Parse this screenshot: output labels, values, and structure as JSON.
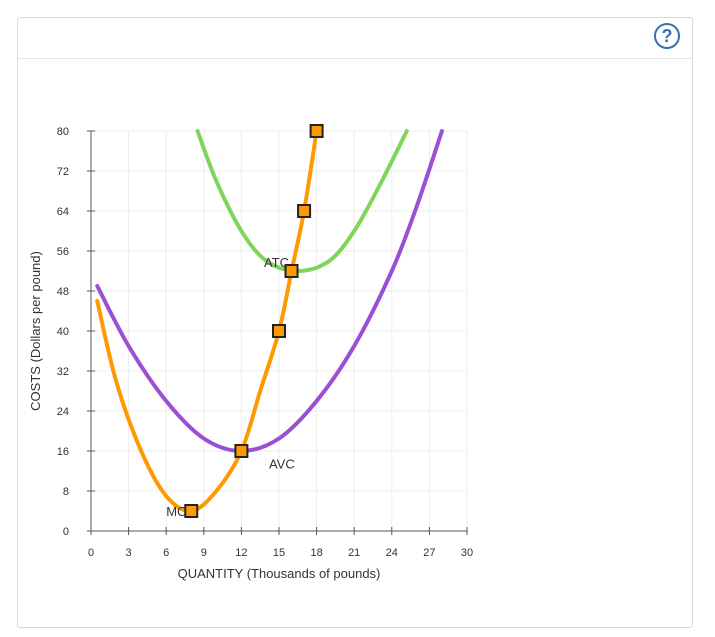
{
  "help_button": {
    "label": "?"
  },
  "chart_data": {
    "type": "line",
    "xlabel": "QUANTITY (Thousands of pounds)",
    "ylabel": "COSTS (Dollars per pound)",
    "xlim": [
      0,
      30
    ],
    "ylim": [
      0,
      80
    ],
    "xticks": [
      0,
      3,
      6,
      9,
      12,
      15,
      18,
      21,
      24,
      27,
      30
    ],
    "yticks": [
      0,
      8,
      16,
      24,
      32,
      40,
      48,
      56,
      64,
      72,
      80
    ],
    "grid": true,
    "series": [
      {
        "name": "MC",
        "color": "#ff9900",
        "points": [
          [
            0.5,
            46
          ],
          [
            2,
            30
          ],
          [
            4,
            16
          ],
          [
            6,
            7
          ],
          [
            8,
            4
          ],
          [
            10,
            8
          ],
          [
            12,
            16
          ],
          [
            13.5,
            28
          ],
          [
            15,
            40
          ],
          [
            16,
            52
          ],
          [
            17,
            64
          ],
          [
            18,
            80
          ]
        ],
        "markers": [
          [
            8,
            4
          ],
          [
            12,
            16
          ],
          [
            15,
            40
          ],
          [
            16,
            52
          ],
          [
            17,
            64
          ],
          [
            18,
            80
          ]
        ],
        "label_at": [
          6,
          4
        ]
      },
      {
        "name": "AVC",
        "color": "#9b4fd4",
        "points": [
          [
            0.5,
            49
          ],
          [
            3,
            37
          ],
          [
            6,
            26
          ],
          [
            9,
            18.5
          ],
          [
            12,
            16
          ],
          [
            15,
            18.5
          ],
          [
            18,
            26
          ],
          [
            21,
            37
          ],
          [
            24,
            52
          ],
          [
            26,
            65
          ],
          [
            28,
            80
          ]
        ],
        "markers": [],
        "label_at": [
          14.2,
          13.5
        ]
      },
      {
        "name": "ATC",
        "color": "#7dd65a",
        "points": [
          [
            8.5,
            80
          ],
          [
            10,
            70
          ],
          [
            12,
            60
          ],
          [
            14,
            54
          ],
          [
            16.5,
            52
          ],
          [
            19,
            54
          ],
          [
            21,
            60
          ],
          [
            23,
            69
          ],
          [
            25.2,
            80
          ]
        ],
        "markers": [],
        "label_at": [
          13.8,
          53.8
        ]
      }
    ],
    "marker_style": {
      "fill": "#ff9900",
      "stroke": "#222222"
    }
  }
}
